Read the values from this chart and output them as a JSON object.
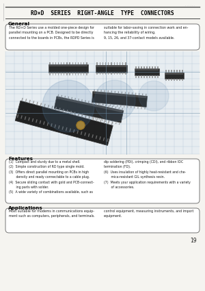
{
  "title": "RD×D  SERIES  RIGHT-ANGLE  TYPE  CONNECTORS",
  "bg_color": "#f5f4f0",
  "page_bg": "#f5f4f0",
  "general_heading": "General",
  "general_text_left": "The RD×D Series use a molded one-piece design for\nparallel mounting on a PCB. Designed to be directly\nconnected to the boards in PCBs, the RDPD Series is",
  "general_text_right": "suitable for labor-saving in connection work and en-\nhancing the reliability of wiring.\n9, 15, 26, and 37-contact models available.",
  "features_heading": "Features",
  "features_left": "(1)  Compact and sturdy due to a metal shell.\n(2)  Simple construction of RD type single mold.\n(3)  Offers direct parallel mounting on PCBs in high\n       density and ready connectable to a cable plug.\n(4)  Secure sliding contact with gold and PCB-connect-\n       ing parts with solder.\n(5)  A wide variety of combinations available, such as",
  "features_right": "dip soldering (PDI), crimping (CDI), and ribbon IDC\ntermination (FD).\n(6)  Uses insulation of highly heat-resistant and che-\n       mica-resistant GIL synthesis resin.\n(7)  Meets your application requirements with a variety\n       of accessories.",
  "applications_heading": "Applications",
  "applications_text_left": "Most suitable for modems in communications equip-\nment such as computers, peripherals, and terminals.",
  "applications_text_right": "control equipment, measuring instruments, and import\nequipment.",
  "page_number": "19",
  "border_color": "#777777",
  "text_color": "#1a1a1a",
  "heading_color": "#000000",
  "box_bg": "#ffffff",
  "line_color": "#444444",
  "image_bg_color": "#dce8f2",
  "grid_color": "#a0b8cc",
  "connector_dark": "#1a1a1a",
  "connector_mid": "#3a3a3a",
  "connector_pin": "#888888",
  "watermark_color": "#5580aa"
}
